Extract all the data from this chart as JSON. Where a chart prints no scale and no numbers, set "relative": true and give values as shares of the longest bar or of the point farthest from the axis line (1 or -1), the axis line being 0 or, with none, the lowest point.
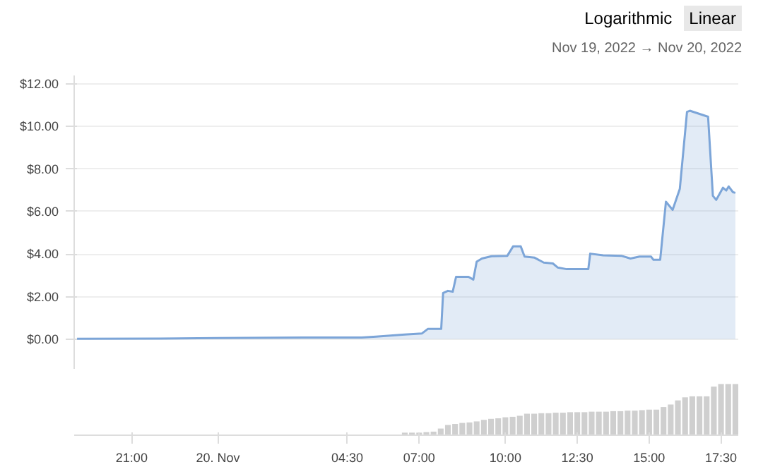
{
  "chart_data": [
    {
      "type": "area",
      "annotations": [
        "Logarithmic",
        "Linear",
        "Nov 19, 2022 → Nov 20, 2022"
      ],
      "series": [
        {
          "color": "#7ca5d8",
          "x": [
            "2022-11-19T19:06",
            "2022-11-19T22:00",
            "2022-11-20T00:00",
            "2022-11-20T03:00",
            "2022-11-20T05:00",
            "2022-11-20T05:30",
            "2022-11-20T06:30",
            "2022-11-20T07:06",
            "2022-11-20T07:18",
            "2022-11-20T07:46",
            "2022-11-20T07:50",
            "2022-11-20T08:00",
            "2022-11-20T08:10",
            "2022-11-20T08:17",
            "2022-11-20T08:43",
            "2022-11-20T08:53",
            "2022-11-20T09:00",
            "2022-11-20T09:11",
            "2022-11-20T09:31",
            "2022-11-20T10:04",
            "2022-11-20T10:16",
            "2022-11-20T10:32",
            "2022-11-20T10:40",
            "2022-11-20T11:01",
            "2022-11-20T11:20",
            "2022-11-20T11:39",
            "2022-11-20T11:49",
            "2022-11-20T12:08",
            "2022-11-20T12:53",
            "2022-11-20T12:57",
            "2022-11-20T13:24",
            "2022-11-20T14:02",
            "2022-11-20T14:21",
            "2022-11-20T14:40",
            "2022-11-20T15:04",
            "2022-11-20T15:09",
            "2022-11-20T15:23",
            "2022-11-20T15:35",
            "2022-11-20T15:49",
            "2022-11-20T16:04",
            "2022-11-20T16:19",
            "2022-11-20T16:25",
            "2022-11-20T17:03",
            "2022-11-20T17:13",
            "2022-11-20T17:20",
            "2022-11-20T17:34",
            "2022-11-20T17:41",
            "2022-11-20T17:46",
            "2022-11-20T17:55",
            "2022-11-20T18:00"
          ],
          "values": [
            0.02,
            0.03,
            0.05,
            0.08,
            0.08,
            0.12,
            0.22,
            0.27,
            0.48,
            0.48,
            2.17,
            2.27,
            2.23,
            2.93,
            2.93,
            2.8,
            3.64,
            3.79,
            3.9,
            3.92,
            4.36,
            4.36,
            3.88,
            3.83,
            3.6,
            3.56,
            3.37,
            3.29,
            3.29,
            4.02,
            3.94,
            3.92,
            3.79,
            3.88,
            3.88,
            3.73,
            3.73,
            6.46,
            6.08,
            7.07,
            10.69,
            10.74,
            10.46,
            6.74,
            6.55,
            7.12,
            6.99,
            7.18,
            6.91,
            6.88
          ]
        }
      ],
      "xlim": [
        "2022-11-19T19:00",
        "2022-11-20T18:06"
      ],
      "ylim": [
        -1.4,
        12.4
      ],
      "yticks": [
        {
          "value": 0,
          "label": "$0.00"
        },
        {
          "value": 2,
          "label": "$2.00"
        },
        {
          "value": 4,
          "label": "$4.00"
        },
        {
          "value": 6,
          "label": "$6.00"
        },
        {
          "value": 8,
          "label": "$8.00"
        },
        {
          "value": 10,
          "label": "$10.00"
        },
        {
          "value": 12,
          "label": "$12.00"
        }
      ],
      "grid": "y",
      "tick_labels": "y"
    },
    {
      "type": "bar",
      "relative": true,
      "color": "#cfcfcf",
      "x": [
        "2022-11-20T06:30",
        "2022-11-20T06:45",
        "2022-11-20T07:00",
        "2022-11-20T07:15",
        "2022-11-20T07:30",
        "2022-11-20T07:45",
        "2022-11-20T08:00",
        "2022-11-20T08:15",
        "2022-11-20T08:30",
        "2022-11-20T08:45",
        "2022-11-20T09:00",
        "2022-11-20T09:15",
        "2022-11-20T09:30",
        "2022-11-20T09:45",
        "2022-11-20T10:00",
        "2022-11-20T10:15",
        "2022-11-20T10:30",
        "2022-11-20T10:45",
        "2022-11-20T11:00",
        "2022-11-20T11:15",
        "2022-11-20T11:30",
        "2022-11-20T11:45",
        "2022-11-20T12:00",
        "2022-11-20T12:15",
        "2022-11-20T12:30",
        "2022-11-20T12:45",
        "2022-11-20T13:00",
        "2022-11-20T13:15",
        "2022-11-20T13:30",
        "2022-11-20T13:45",
        "2022-11-20T14:00",
        "2022-11-20T14:15",
        "2022-11-20T14:30",
        "2022-11-20T14:45",
        "2022-11-20T15:00",
        "2022-11-20T15:15",
        "2022-11-20T15:30",
        "2022-11-20T15:45",
        "2022-11-20T16:00",
        "2022-11-20T16:15",
        "2022-11-20T16:30",
        "2022-11-20T16:45",
        "2022-11-20T17:00",
        "2022-11-20T17:15",
        "2022-11-20T17:30",
        "2022-11-20T17:45",
        "2022-11-20T18:00"
      ],
      "values": [
        0.05,
        0.05,
        0.05,
        0.06,
        0.07,
        0.13,
        0.2,
        0.22,
        0.24,
        0.25,
        0.27,
        0.3,
        0.32,
        0.33,
        0.35,
        0.36,
        0.38,
        0.42,
        0.42,
        0.43,
        0.43,
        0.44,
        0.44,
        0.45,
        0.45,
        0.45,
        0.46,
        0.46,
        0.46,
        0.47,
        0.47,
        0.48,
        0.48,
        0.49,
        0.5,
        0.5,
        0.55,
        0.6,
        0.68,
        0.74,
        0.76,
        0.76,
        0.76,
        0.95,
        1,
        1,
        1
      ],
      "xlim": [
        "2022-11-19T19:00",
        "2022-11-20T18:06"
      ],
      "xticks": [
        {
          "value": "2022-11-19T21:00",
          "label": "21:00"
        },
        {
          "value": "2022-11-20T00:00",
          "label": "20. Nov"
        },
        {
          "value": "2022-11-20T04:30",
          "label": "04:30"
        },
        {
          "value": "2022-11-20T07:00",
          "label": "07:00"
        },
        {
          "value": "2022-11-20T10:00",
          "label": "10:00"
        },
        {
          "value": "2022-11-20T12:30",
          "label": "12:30"
        },
        {
          "value": "2022-11-20T15:00",
          "label": "15:00"
        },
        {
          "value": "2022-11-20T17:30",
          "label": "17:30"
        }
      ],
      "tick_labels": "x"
    }
  ]
}
